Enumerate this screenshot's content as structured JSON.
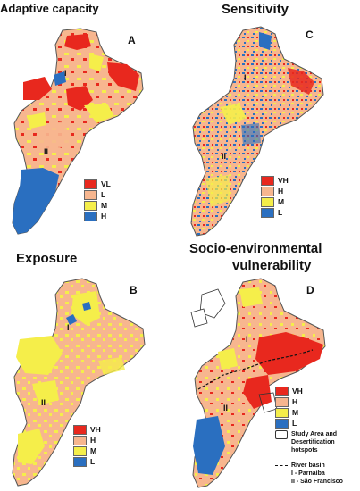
{
  "panels": [
    {
      "id": "A",
      "title": "Adaptive capacity",
      "letter": "A",
      "legend": [
        {
          "label": "VL",
          "color": "#e8281e"
        },
        {
          "label": "L",
          "color": "#f7b68f"
        },
        {
          "label": "M",
          "color": "#f5ee4a"
        },
        {
          "label": "H",
          "color": "#2a6fc0"
        }
      ]
    },
    {
      "id": "C",
      "title": "Sensitivity",
      "letter": "C",
      "legend": [
        {
          "label": "VH",
          "color": "#e8281e"
        },
        {
          "label": "H",
          "color": "#f7b68f"
        },
        {
          "label": "M",
          "color": "#f5ee4a"
        },
        {
          "label": "L",
          "color": "#2a6fc0"
        }
      ]
    },
    {
      "id": "B",
      "title": "Exposure",
      "letter": "B",
      "legend": [
        {
          "label": "VH",
          "color": "#e8281e"
        },
        {
          "label": "H",
          "color": "#f7b68f"
        },
        {
          "label": "M",
          "color": "#f5ee4a"
        },
        {
          "label": "L",
          "color": "#2a6fc0"
        }
      ]
    },
    {
      "id": "D",
      "title_line1": "Socio-environmental",
      "title_line2": "vulnerability",
      "letter": "D",
      "legend": [
        {
          "label": "VH",
          "color": "#e8281e"
        },
        {
          "label": "H",
          "color": "#f7b68f"
        },
        {
          "label": "M",
          "color": "#f5ee4a"
        },
        {
          "label": "L",
          "color": "#2a6fc0"
        }
      ]
    }
  ],
  "basin_labels": {
    "one": "I",
    "two": "II"
  },
  "notes": {
    "study_area": "Study Area and",
    "study_area2": "Desertification",
    "study_area3": "hotspots",
    "river_basin": "River basin",
    "parnaiba": "I - Parnaíba",
    "sao_francisco": "II - São Francisco"
  },
  "colors": {
    "vl_vh": "#e8281e",
    "low_high": "#f7b68f",
    "medium": "#f5ee4a",
    "blue": "#2a6fc0",
    "border": "#555555"
  }
}
